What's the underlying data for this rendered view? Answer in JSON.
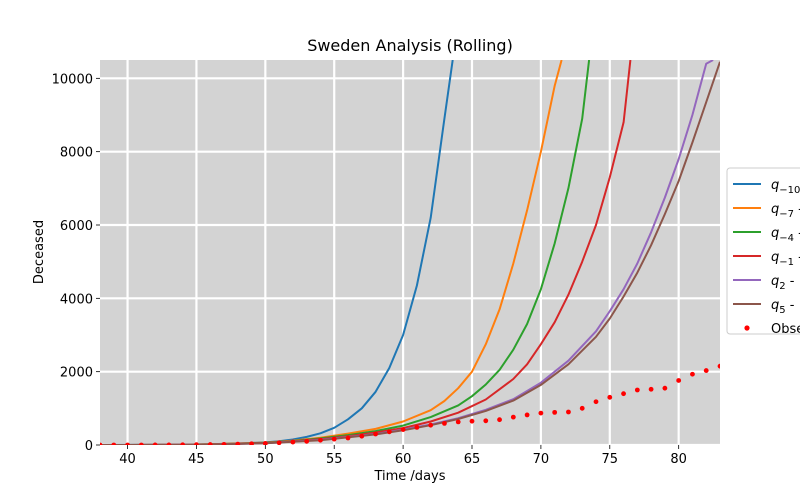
{
  "chart_data": {
    "type": "line",
    "title": "Sweden Analysis (Rolling)",
    "xlabel": "Time /days",
    "ylabel": "Deceased",
    "xlim": [
      38,
      83
    ],
    "ylim": [
      0,
      10500
    ],
    "xticks": [
      40,
      45,
      50,
      55,
      60,
      65,
      70,
      75,
      80
    ],
    "yticks": [
      0,
      2000,
      4000,
      6000,
      8000,
      10000
    ],
    "background": "#d3d3d3",
    "grid": true,
    "legend_position": "center-right",
    "series": [
      {
        "name_base": "q",
        "name_sub": "−10",
        "name_tail": " -",
        "color": "#1f77b4",
        "x": [
          38,
          40,
          42,
          44,
          46,
          48,
          50,
          51,
          52,
          53,
          54,
          55,
          56,
          57,
          58,
          59,
          60,
          61,
          62,
          63,
          63.6
        ],
        "values": [
          1,
          2,
          5,
          10,
          20,
          40,
          70,
          100,
          150,
          220,
          320,
          470,
          700,
          1000,
          1450,
          2100,
          3000,
          4350,
          6200,
          8900,
          10500
        ]
      },
      {
        "name_base": "q",
        "name_sub": "−7",
        "name_tail": " -",
        "color": "#ff7f0e",
        "x": [
          38,
          42,
          46,
          50,
          52,
          54,
          56,
          58,
          60,
          62,
          63,
          64,
          65,
          66,
          67,
          68,
          69,
          70,
          71,
          71.5
        ],
        "values": [
          1,
          4,
          18,
          65,
          120,
          200,
          310,
          440,
          640,
          950,
          1200,
          1550,
          2000,
          2750,
          3700,
          4950,
          6400,
          8000,
          9800,
          10500
        ]
      },
      {
        "name_base": "q",
        "name_sub": "−4",
        "name_tail": " -",
        "color": "#2ca02c",
        "x": [
          38,
          42,
          46,
          50,
          52,
          54,
          56,
          58,
          60,
          62,
          64,
          65,
          66,
          67,
          68,
          69,
          70,
          71,
          72,
          73,
          73.5
        ],
        "values": [
          1,
          4,
          17,
          60,
          110,
          180,
          270,
          380,
          530,
          760,
          1080,
          1330,
          1650,
          2050,
          2600,
          3300,
          4250,
          5500,
          7000,
          8900,
          10500
        ]
      },
      {
        "name_base": "q",
        "name_sub": "−1",
        "name_tail": " -",
        "color": "#d62728",
        "x": [
          38,
          42,
          46,
          50,
          52,
          54,
          56,
          58,
          60,
          62,
          64,
          66,
          68,
          69,
          70,
          71,
          72,
          73,
          74,
          75,
          76,
          76.5
        ],
        "values": [
          1,
          4,
          16,
          55,
          100,
          160,
          240,
          340,
          460,
          640,
          880,
          1240,
          1800,
          2200,
          2750,
          3350,
          4100,
          5000,
          6000,
          7300,
          8800,
          10500
        ]
      },
      {
        "name_base": "q",
        "name_sub": "2",
        "name_tail": " -",
        "color": "#9467bd",
        "x": [
          38,
          42,
          46,
          50,
          54,
          58,
          60,
          62,
          64,
          66,
          68,
          70,
          72,
          74,
          75,
          76,
          77,
          78,
          79,
          80,
          81,
          82,
          82.5
        ],
        "values": [
          1,
          3,
          14,
          50,
          140,
          300,
          420,
          560,
          730,
          960,
          1250,
          1700,
          2300,
          3100,
          3650,
          4250,
          4950,
          5800,
          6750,
          7800,
          9000,
          10400,
          10500
        ]
      },
      {
        "name_base": "q",
        "name_sub": "5",
        "name_tail": " -",
        "color": "#8c564b",
        "x": [
          38,
          42,
          46,
          50,
          54,
          58,
          60,
          62,
          64,
          66,
          68,
          70,
          72,
          74,
          75,
          76,
          77,
          78,
          79,
          80,
          81,
          82,
          83
        ],
        "values": [
          1,
          3,
          14,
          48,
          130,
          290,
          400,
          540,
          710,
          930,
          1210,
          1640,
          2200,
          2950,
          3450,
          4050,
          4700,
          5450,
          6300,
          7200,
          8250,
          9350,
          10450
        ]
      }
    ],
    "observed": {
      "name": "Obse",
      "color": "#ff0000",
      "x": [
        38,
        39,
        40,
        41,
        42,
        43,
        44,
        45,
        46,
        47,
        48,
        49,
        50,
        51,
        52,
        53,
        54,
        55,
        56,
        57,
        58,
        59,
        60,
        61,
        62,
        63,
        64,
        65,
        66,
        67,
        68,
        69,
        70,
        71,
        72,
        73,
        74,
        75,
        76,
        77,
        78,
        79,
        80,
        81,
        82,
        83
      ],
      "values": [
        0,
        0,
        1,
        1,
        2,
        3,
        5,
        8,
        12,
        17,
        24,
        32,
        42,
        60,
        80,
        100,
        130,
        160,
        190,
        240,
        300,
        360,
        420,
        480,
        540,
        590,
        630,
        650,
        660,
        690,
        760,
        820,
        870,
        890,
        900,
        1000,
        1180,
        1300,
        1400,
        1500,
        1520,
        1550,
        1760,
        1930,
        2030,
        2150
      ]
    }
  }
}
